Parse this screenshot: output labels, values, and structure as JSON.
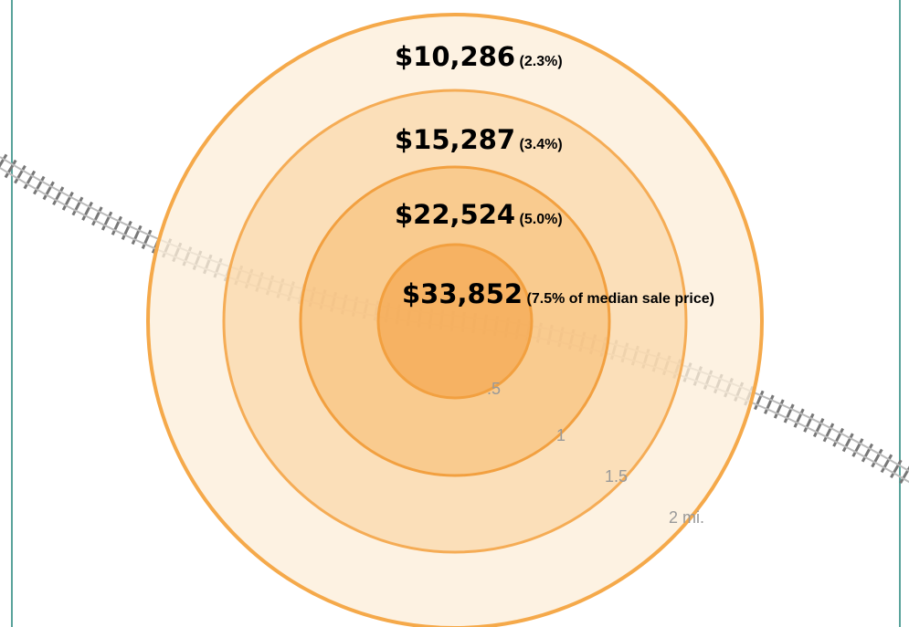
{
  "rings": [
    {
      "amount": "$10,286",
      "share": "(2.3%)"
    },
    {
      "amount": "$15,287",
      "share": "(3.4%)"
    },
    {
      "amount": "$22,524",
      "share": "(5.0%)"
    },
    {
      "amount": "$33,852",
      "share": "(7.5% of median sale price)"
    }
  ],
  "distance_labels": [
    ".5",
    "1",
    "1.5",
    "2 mi."
  ]
}
